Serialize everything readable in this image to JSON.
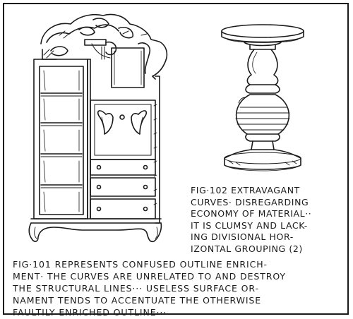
{
  "fig102_caption": {
    "lines": [
      "FIG·102 EXTRAVAGANT",
      "CURVES· DISREGARDING",
      "ECONOMY OF MATERIAL··",
      "IT IS CLUMSY AND LACK-",
      "ING DIVISIONAL HOR-",
      "IZONTAL GROUPING (2)"
    ]
  },
  "fig101_caption": {
    "lines": [
      "FIG·101 REPRESENTS CONFUSED OUTLINE ENRICH-",
      "MENT· THE CURVES ARE UNRELATED TO AND DESTROY",
      "THE STRUCTURAL LINES··· USELESS SURFACE OR-",
      "NAMENT TENDS TO ACCENTUATE THE OTHERWISE",
      "FAULTILY ENRICHED OUTLINE···"
    ]
  }
}
